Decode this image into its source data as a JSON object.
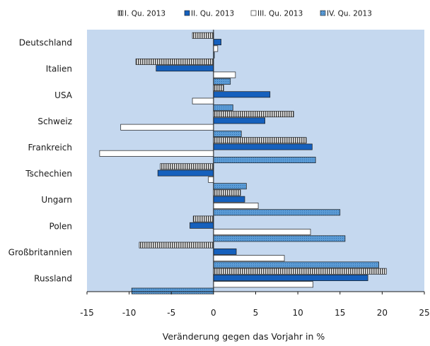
{
  "chart_data": {
    "type": "bar",
    "orientation": "horizontal",
    "categories": [
      "Deutschland",
      "Italien",
      "USA",
      "Schweiz",
      "Frankreich",
      "Tschechien",
      "Ungarn",
      "Polen",
      "Großbritannien",
      "Russland"
    ],
    "series": [
      {
        "name": "I. Qu. 2013",
        "values": [
          -2.5,
          -9.2,
          1.2,
          9.5,
          11.0,
          -6.3,
          3.2,
          -2.4,
          -8.8,
          20.5
        ]
      },
      {
        "name": "II. Qu. 2013",
        "values": [
          0.9,
          -6.8,
          6.7,
          6.1,
          11.7,
          -6.6,
          3.7,
          -2.8,
          2.7,
          18.3
        ]
      },
      {
        "name": "III. Qu. 2013",
        "values": [
          0.5,
          2.6,
          -2.5,
          -11.0,
          -13.5,
          -0.6,
          5.3,
          11.5,
          8.4,
          11.8
        ]
      },
      {
        "name": "IV. Qu. 2013",
        "values": [
          0.1,
          2.0,
          2.3,
          3.3,
          12.1,
          3.9,
          15.0,
          15.6,
          19.6,
          -9.7
        ]
      }
    ],
    "xlabel": "Veränderung gegen das Vorjahr in %",
    "xlim": [
      -15,
      25
    ],
    "xticks": [
      -15,
      -10,
      -5,
      0,
      5,
      10,
      15,
      20,
      25
    ],
    "legend_position": "top",
    "colors": {
      "plot_background": "#c5d8ef",
      "series_1": "#5a5a5a",
      "series_2": "#1560bd",
      "series_3": "#ffffff",
      "series_4": "#5b9bd5",
      "outline": "#1a1a1a"
    }
  }
}
